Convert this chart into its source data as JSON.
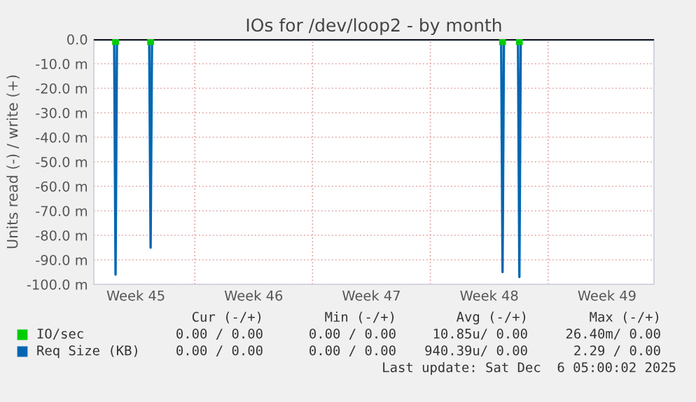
{
  "chart_data": {
    "type": "line",
    "title": "IOs for /dev/loop2 - by month",
    "ylabel": "Units read (-) / write (+)",
    "series": [
      {
        "name": "IO/sec",
        "type": "scatter",
        "color": "#00cc00",
        "marker": "square",
        "x": [
          "2025-11-05T07:00",
          "2025-11-07T09:00",
          "2025-11-28T07:00",
          "2025-11-29T07:00"
        ],
        "values": [
          -1,
          -1,
          -1,
          -1
        ]
      },
      {
        "name": "Req Size (KB)",
        "color": "#0066b3",
        "x": [
          "2025-11-04",
          "2025-11-05T05:00",
          "2025-11-05T07:00",
          "2025-11-05T09:00",
          "2025-11-07T07:00",
          "2025-11-07T09:00",
          "2025-11-07T11:00",
          "2025-11-28T05:00",
          "2025-11-28T07:00",
          "2025-11-28T09:00",
          "2025-11-29T05:00",
          "2025-11-29T07:00",
          "2025-11-29T09:00",
          "2025-12-07T07:00"
        ],
        "values": [
          0,
          0,
          -96,
          0,
          0,
          -85,
          0,
          0,
          -95,
          0,
          0,
          -97,
          0,
          0
        ]
      }
    ],
    "xlim": [
      "2025-11-04",
      "2025-12-07T07:00"
    ],
    "xticks": [
      {
        "value": "2025-11-06T12:00",
        "label": "Week 45"
      },
      {
        "value": "2025-11-10",
        "label": null
      },
      {
        "value": "2025-11-13T12:00",
        "label": "Week 46"
      },
      {
        "value": "2025-11-17",
        "label": null
      },
      {
        "value": "2025-11-20T12:00",
        "label": "Week 47"
      },
      {
        "value": "2025-11-24",
        "label": null
      },
      {
        "value": "2025-11-27T12:00",
        "label": "Week 48"
      },
      {
        "value": "2025-12-01",
        "label": null
      },
      {
        "value": "2025-12-04T12:00",
        "label": "Week 49"
      }
    ],
    "ylim": [
      -100,
      0
    ],
    "yticks": [
      {
        "value": 0,
        "label": "0.0"
      },
      {
        "value": -10,
        "label": "-10.0 m"
      },
      {
        "value": -20,
        "label": "-20.0 m"
      },
      {
        "value": -30,
        "label": "-30.0 m"
      },
      {
        "value": -40,
        "label": "-40.0 m"
      },
      {
        "value": -50,
        "label": "-50.0 m"
      },
      {
        "value": -60,
        "label": "-60.0 m"
      },
      {
        "value": -70,
        "label": "-70.0 m"
      },
      {
        "value": -80,
        "label": "-80.0 m"
      },
      {
        "value": -90,
        "label": "-90.0 m"
      },
      {
        "value": -100,
        "label": "-100.0 m"
      }
    ],
    "grid": true,
    "legend": "bottom",
    "annotations": [
      "Cur (-/+)",
      "Min (-/+)",
      "Avg (-/+)",
      "Max (-/+)",
      "0.00 / 0.00",
      "0.00 / 0.00",
      "10.85u/ 0.00",
      "26.40m/ 0.00",
      "0.00 / 0.00",
      "0.00 / 0.00",
      "940.39u/ 0.00",
      "2.29 / 0.00",
      "Last update: Sat Dec  6 05:00:02 2025"
    ]
  }
}
